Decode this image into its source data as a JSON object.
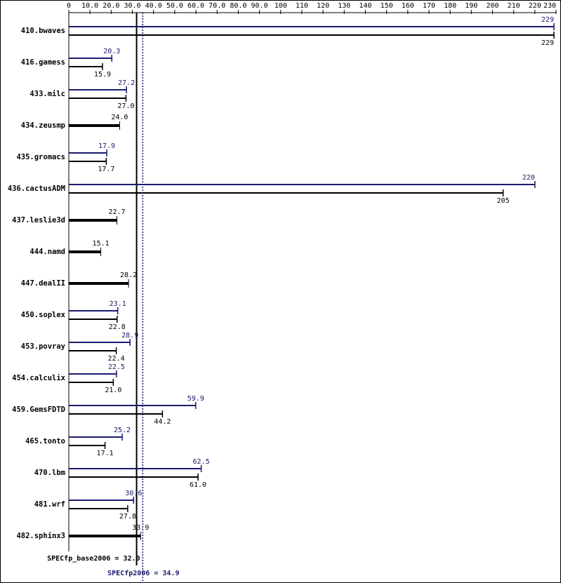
{
  "chart_data": {
    "type": "spec-bar",
    "categories": [
      "410.bwaves",
      "416.gamess",
      "433.milc",
      "434.zeusmp",
      "435.gromacs",
      "436.cactusADM",
      "437.leslie3d",
      "444.namd",
      "447.dealII",
      "450.soplex",
      "453.povray",
      "454.calculix",
      "459.GemsFDTD",
      "465.tonto",
      "470.lbm",
      "481.wrf",
      "482.sphinx3"
    ],
    "series": [
      {
        "color": "#191970",
        "values": [
          229,
          20.3,
          27.2,
          null,
          17.9,
          220,
          null,
          null,
          null,
          23.1,
          28.9,
          22.5,
          59.9,
          25.2,
          62.5,
          30.6,
          null
        ],
        "value_labels": [
          "229",
          "20.3",
          "27.2",
          null,
          "17.9",
          "220",
          null,
          null,
          null,
          "23.1",
          "28.9",
          "22.5",
          "59.9",
          "25.2",
          "62.5",
          "30.6",
          null
        ]
      },
      {
        "color": "#000000",
        "values": [
          229,
          15.9,
          27.0,
          24.0,
          17.7,
          205,
          22.7,
          15.1,
          28.2,
          22.8,
          22.4,
          21.0,
          44.2,
          17.1,
          61.0,
          27.8,
          33.9
        ],
        "value_labels": [
          "229",
          "15.9",
          "27.0",
          "24.0",
          "17.7",
          "205",
          "22.7",
          "15.1",
          "28.2",
          "22.8",
          "22.4",
          "21.0",
          "44.2",
          "17.1",
          "61.0",
          "27.8",
          "33.9"
        ]
      }
    ],
    "reference_lines": [
      {
        "label": "SPECfp_base2006 = 32.0",
        "value": 32.0,
        "color": "#000000",
        "style": "solid"
      },
      {
        "label": "SPECfp2006 = 34.9",
        "value": 34.9,
        "color": "#191970",
        "style": "dotted"
      }
    ],
    "xlim": [
      0,
      230
    ],
    "xticks": [
      0,
      {
        "value": 10,
        "label": "10.0"
      },
      {
        "value": 20,
        "label": "20.0"
      },
      {
        "value": 30,
        "label": "30.0"
      },
      {
        "value": 40,
        "label": "40.0"
      },
      {
        "value": 50,
        "label": "50.0"
      },
      {
        "value": 60,
        "label": "60.0"
      },
      {
        "value": 70,
        "label": "70.0"
      },
      {
        "value": 80,
        "label": "80.0"
      },
      {
        "value": 90,
        "label": "90.0"
      },
      100,
      110,
      120,
      130,
      140,
      150,
      160,
      170,
      180,
      190,
      200,
      210,
      220,
      230
    ]
  }
}
